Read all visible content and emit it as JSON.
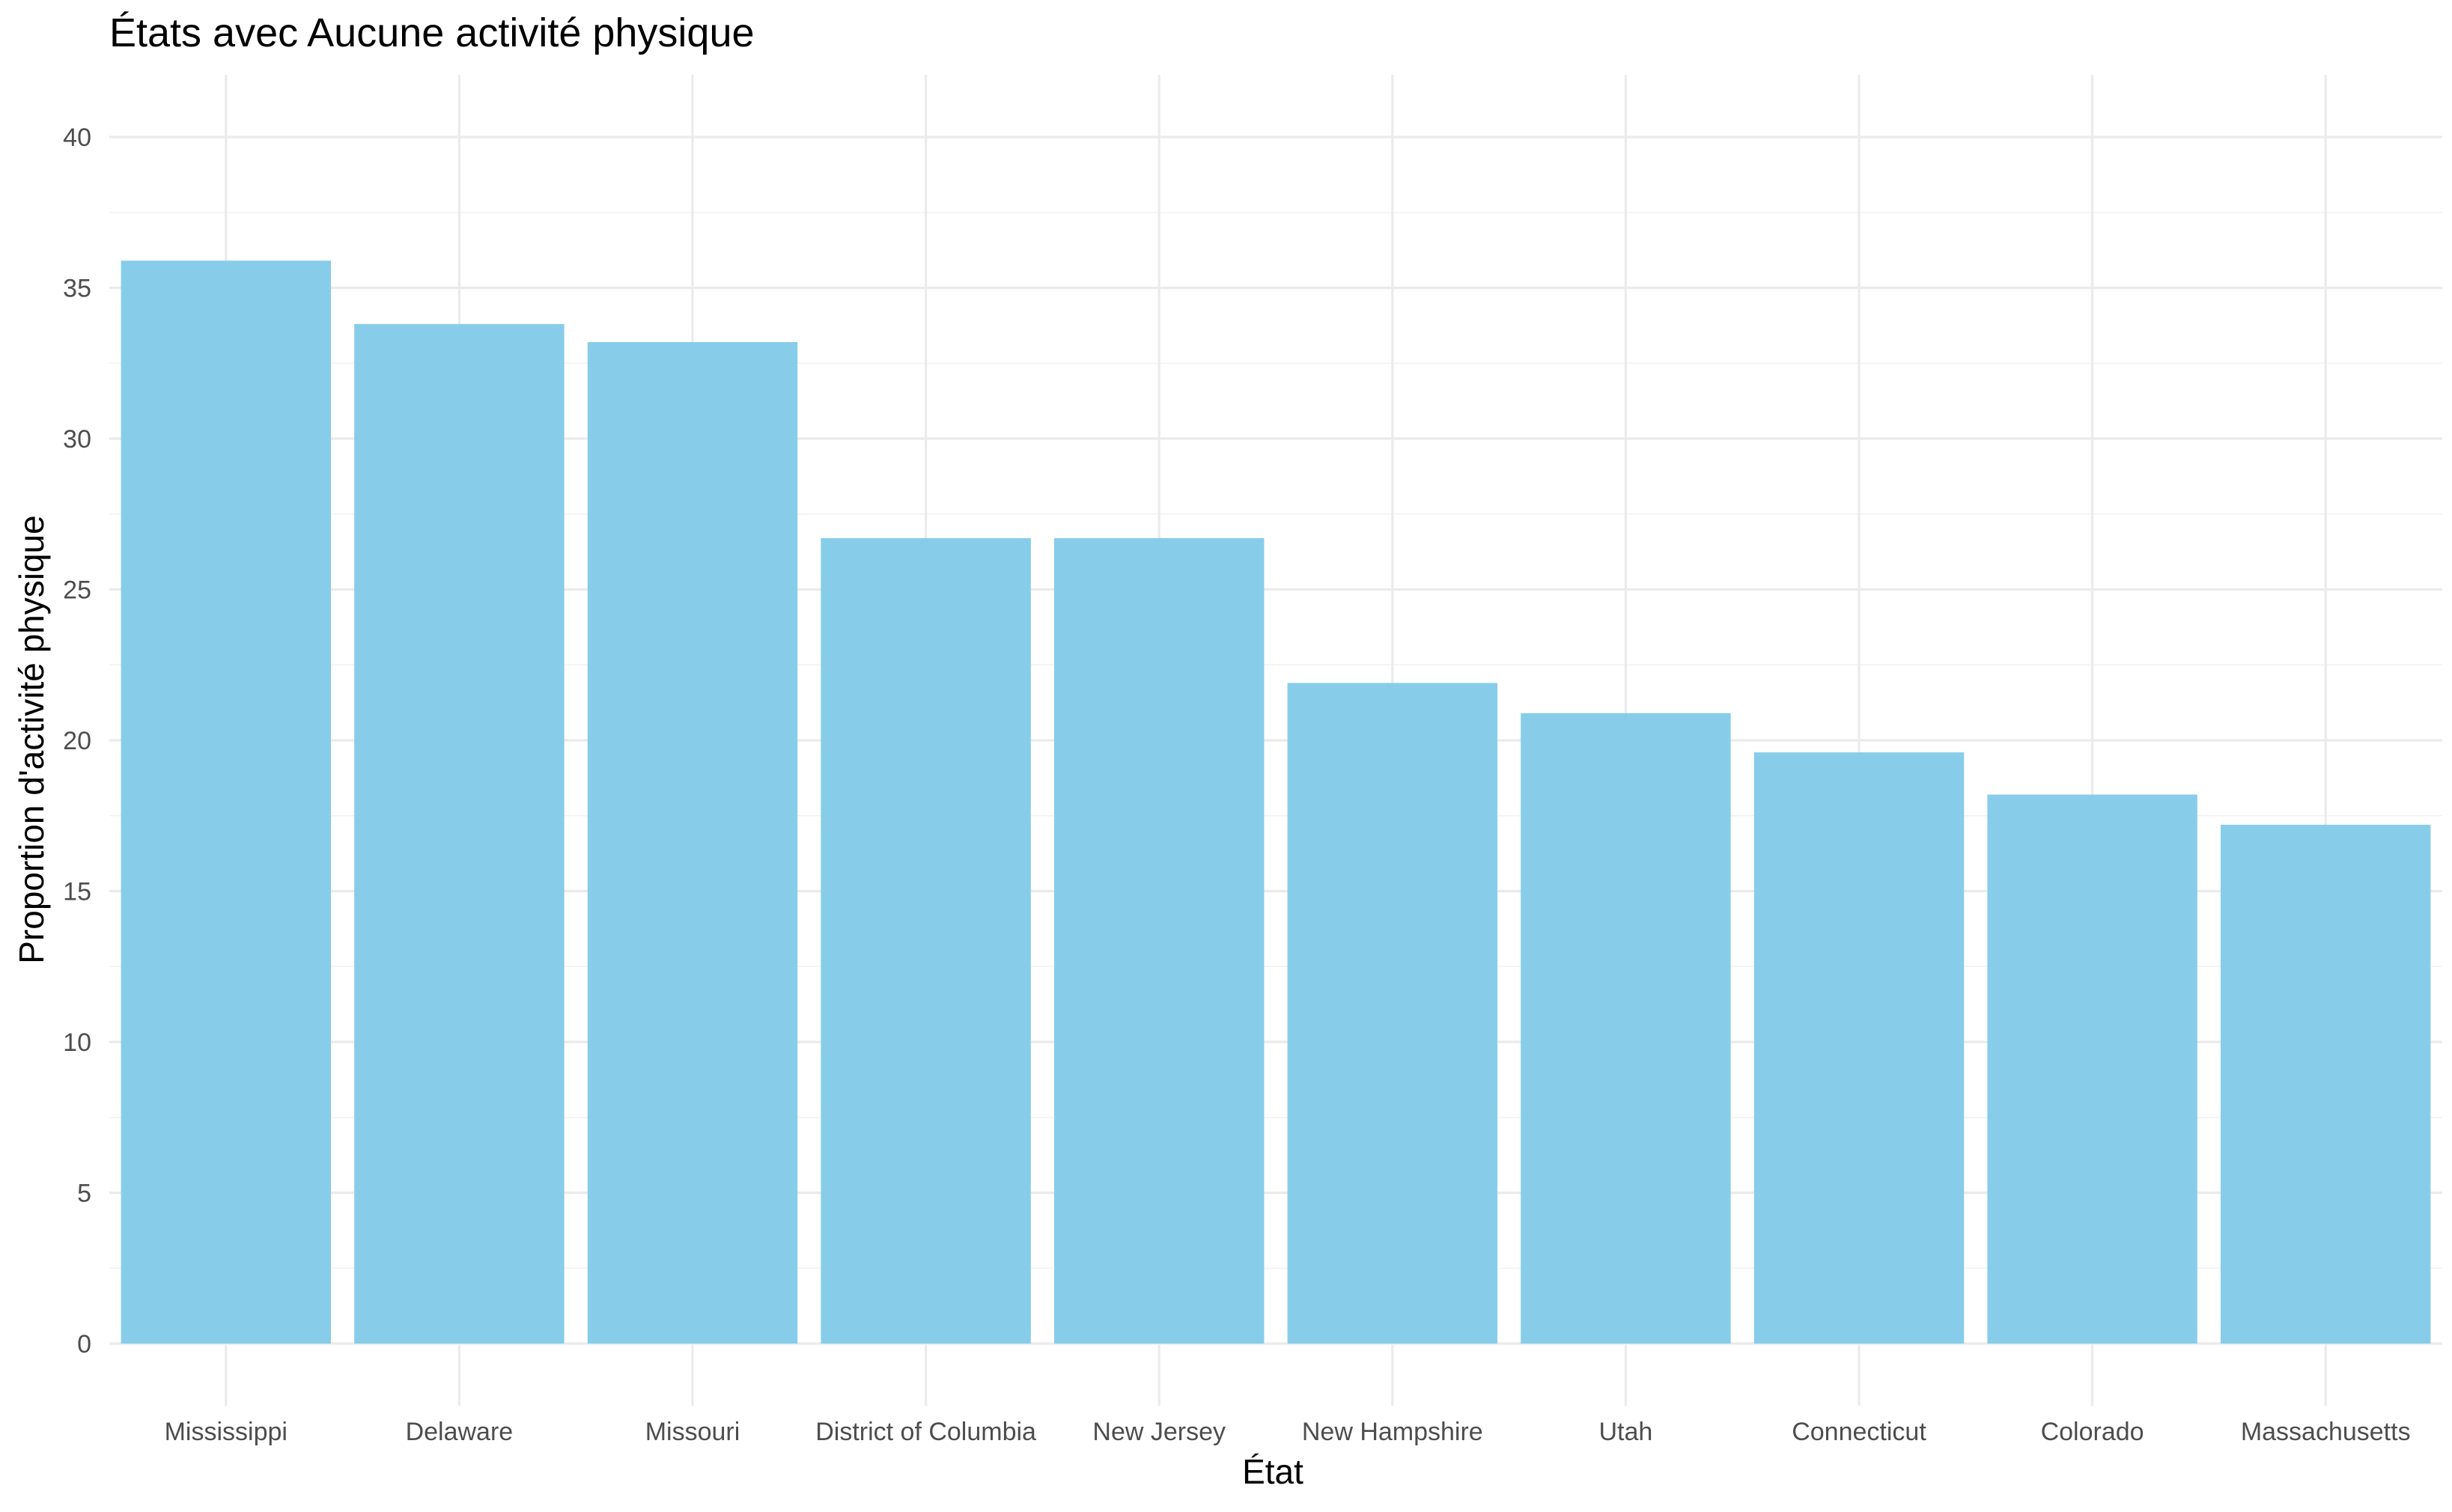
{
  "chart_data": {
    "type": "bar",
    "title": "États avec Aucune activité physique",
    "xlabel": "État",
    "ylabel": "Proportion d'activité physique",
    "categories": [
      "Mississippi",
      "Delaware",
      "Missouri",
      "District of Columbia",
      "New Jersey",
      "New Hampshire",
      "Utah",
      "Connecticut",
      "Colorado",
      "Massachusetts"
    ],
    "values": [
      35.9,
      33.8,
      33.2,
      26.7,
      26.7,
      21.9,
      20.9,
      19.6,
      18.2,
      17.2
    ],
    "ylim": [
      0,
      40
    ],
    "yticks": [
      0,
      5,
      10,
      15,
      20,
      25,
      30,
      35,
      40
    ],
    "grid": true,
    "legend": "none",
    "bar_color": "#87CDEA"
  }
}
